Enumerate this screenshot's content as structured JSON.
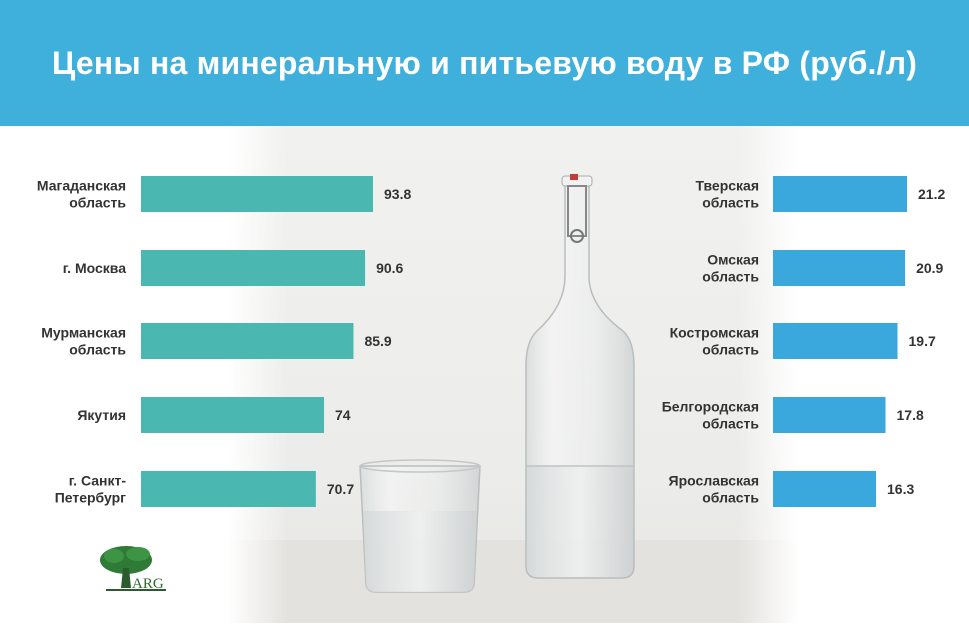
{
  "title": "Цены на минеральную и питьевую воду в РФ (руб./л)",
  "logo_text": "ARG",
  "colors": {
    "header": "#3fb0db",
    "left_bars": "#4ab8b0",
    "right_bars": "#3aa8dd"
  },
  "chart_data": [
    {
      "type": "bar",
      "orientation": "horizontal",
      "categories": [
        [
          "Магаданская",
          "область"
        ],
        [
          "г. Москва"
        ],
        [
          "Мурманская",
          "область"
        ],
        [
          "Якутия"
        ],
        [
          "г. Санкт-",
          "Петербург"
        ]
      ],
      "values": [
        93.8,
        90.6,
        85.9,
        74,
        70.7
      ],
      "value_labels": [
        "93.8",
        "90.6",
        "85.9",
        "74",
        "70.7"
      ]
    },
    {
      "type": "bar",
      "orientation": "horizontal",
      "categories": [
        [
          "Тверская",
          "область"
        ],
        [
          "Омская",
          "область"
        ],
        [
          "Костромская",
          "область"
        ],
        [
          "Белгородская",
          "область"
        ],
        [
          "Ярославская",
          "область"
        ]
      ],
      "values": [
        21.2,
        20.9,
        19.7,
        17.8,
        16.3
      ],
      "value_labels": [
        "21.2",
        "20.9",
        "19.7",
        "17.8",
        "16.3"
      ]
    }
  ]
}
